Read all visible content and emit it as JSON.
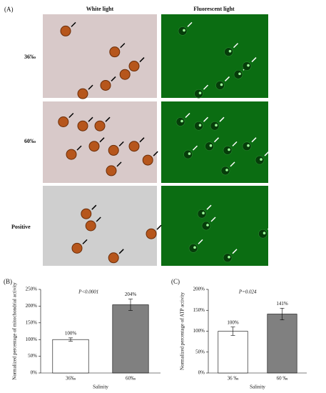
{
  "figure": {
    "panel_label": "(A)",
    "columns": [
      "White light",
      "Fluorescent light"
    ],
    "rows": [
      "36‰",
      "60‰",
      "Positive"
    ]
  },
  "chart_data": [
    {
      "type": "bar",
      "panel_label": "(B)",
      "annotation": "P<0.0001",
      "ylabel": "Normalized percentage of mitochondrial activity",
      "xlabel": "Salinity",
      "categories": [
        "36‰",
        "60‰"
      ],
      "values": [
        100,
        204
      ],
      "errors": [
        5,
        17
      ],
      "value_labels": [
        "100%",
        "204%"
      ],
      "colors": [
        "#ffffff",
        "#808080"
      ],
      "edgecolor": "#000000",
      "ylim": [
        0,
        250
      ],
      "yticks": [
        {
          "value": 0,
          "label": "0%"
        },
        {
          "value": 50,
          "label": "50%"
        },
        {
          "value": 100,
          "label": "100%"
        },
        {
          "value": 150,
          "label": "150%"
        },
        {
          "value": 200,
          "label": "200%"
        },
        {
          "value": 250,
          "label": "250%"
        }
      ]
    },
    {
      "type": "bar",
      "panel_label": "(C)",
      "annotation": "P=0.024",
      "ylabel": "Normalized percentage of ATP activity",
      "xlabel": "Salinity",
      "categories": [
        "36 ‰",
        "60 ‰"
      ],
      "values": [
        100,
        141
      ],
      "errors": [
        10,
        14
      ],
      "value_labels": [
        "100%",
        "141%"
      ],
      "colors": [
        "#ffffff",
        "#808080"
      ],
      "edgecolor": "#000000",
      "ylim": [
        0,
        200
      ],
      "yticks": [
        {
          "value": 0,
          "label": "0%"
        },
        {
          "value": 50,
          "label": "50%"
        },
        {
          "value": 100,
          "label": "100%"
        },
        {
          "value": 150,
          "label": "150%"
        },
        {
          "value": 200,
          "label": "200%"
        }
      ]
    }
  ]
}
